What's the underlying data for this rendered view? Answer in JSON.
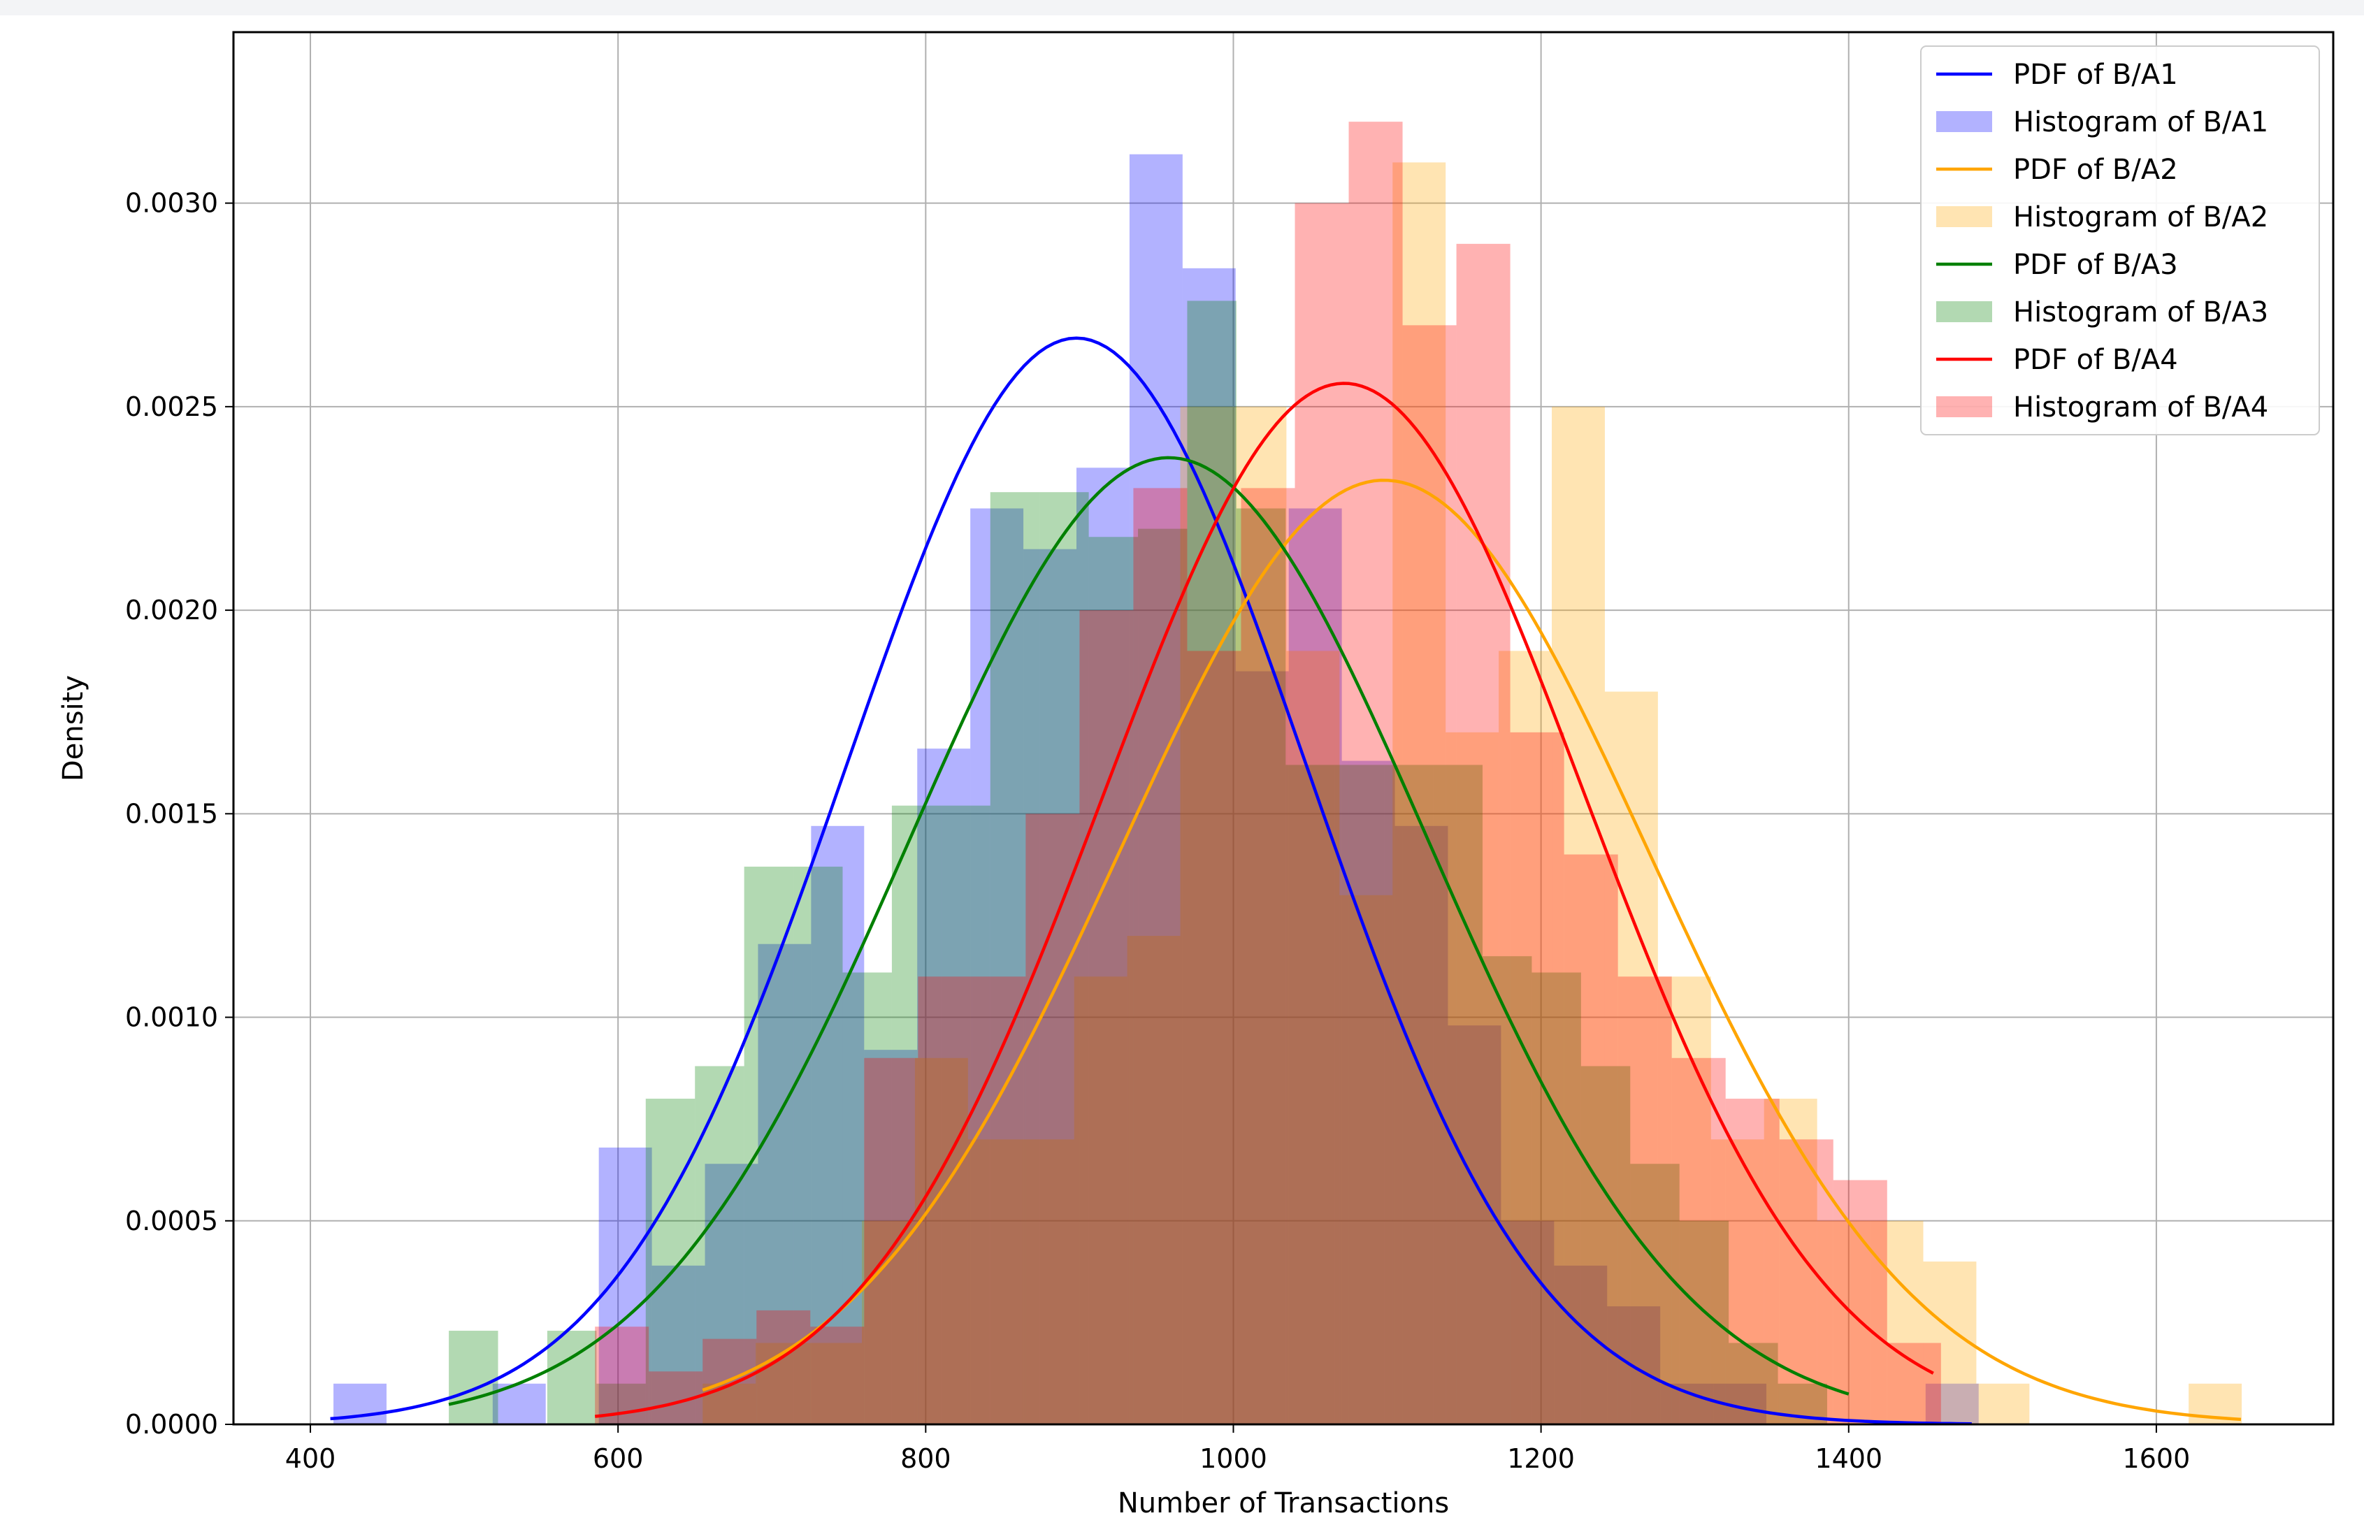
{
  "chart_data": {
    "type": "histogram",
    "title": "",
    "xlabel": "Number of Transactions",
    "ylabel": "Density",
    "xlim": [
      350,
      1715
    ],
    "ylim": [
      0,
      0.00342
    ],
    "xticks": [
      400,
      600,
      800,
      1000,
      1200,
      1400,
      1600
    ],
    "yticks": [
      0.0,
      0.0005,
      0.001,
      0.0015,
      0.002,
      0.0025,
      0.003
    ],
    "xtick_labels": [
      "400",
      "600",
      "800",
      "1000",
      "1200",
      "1400",
      "1600"
    ],
    "ytick_labels": [
      "0.0000",
      "0.0005",
      "0.0010",
      "0.0015",
      "0.0020",
      "0.0025",
      "0.0030"
    ],
    "grid": true,
    "legend_position": "top-right",
    "legend": [
      "PDF of B/A1",
      "Histogram of B/A1",
      "PDF of B/A2",
      "Histogram of B/A2",
      "PDF of B/A3",
      "Histogram of B/A3",
      "PDF of B/A4",
      "Histogram of B/A4"
    ],
    "series": [
      {
        "name": "B/A1",
        "pdf_label": "PDF of B/A1",
        "hist_label": "Histogram of B/A1",
        "color": "#0000ff",
        "mean": 898,
        "std": 149.5,
        "pdf_range": [
          413,
          1480
        ],
        "bins": [
          415,
          449.5,
          484,
          518.5,
          553,
          587.5,
          622,
          656.5,
          691,
          725.5,
          760,
          794.5,
          829,
          863.5,
          898,
          932.5,
          967,
          1001.5,
          1036,
          1070.5,
          1105,
          1139.5,
          1174,
          1208.5,
          1243,
          1277.5,
          1312,
          1346.5,
          1381,
          1415.5,
          1450,
          1484.5
        ],
        "density": [
          0.0001,
          0,
          0,
          0.0001,
          0,
          0.00068,
          0.00039,
          0.00064,
          0.00118,
          0.00147,
          0.00092,
          0.00166,
          0.00225,
          0.00215,
          0.00235,
          0.00312,
          0.00284,
          0.00185,
          0.00225,
          0.00163,
          0.00147,
          0.00098,
          0.0005,
          0.00039,
          0.00029,
          0.0001,
          0.0001,
          0,
          0,
          0,
          0.0001
        ]
      },
      {
        "name": "B/A2",
        "pdf_label": "PDF of B/A2",
        "hist_label": "Histogram of B/A2",
        "color": "#ffa500",
        "mean": 1098,
        "std": 172,
        "pdf_range": [
          655,
          1655
        ],
        "bins": [
          655,
          689.5,
          724,
          758.5,
          793,
          827.5,
          862,
          896.5,
          931,
          965.5,
          1000,
          1034.5,
          1069,
          1103.5,
          1138,
          1172.5,
          1207,
          1241.5,
          1276,
          1310.5,
          1345,
          1379.5,
          1414,
          1448.5,
          1483,
          1517.5,
          1552,
          1586.5,
          1621,
          1655.5
        ],
        "density": [
          0.0001,
          0.0002,
          0.0002,
          0.0005,
          0.0009,
          0.0007,
          0.0007,
          0.0011,
          0.0012,
          0.0025,
          0.0025,
          0.0019,
          0.0013,
          0.0031,
          0.0017,
          0.0019,
          0.0025,
          0.0018,
          0.0011,
          0.0007,
          0.0008,
          0.0005,
          0.0005,
          0.0004,
          0.0001,
          0,
          0,
          0,
          0.0001
        ]
      },
      {
        "name": "B/A3",
        "pdf_label": "PDF of B/A3",
        "hist_label": "Histogram of B/A3",
        "color": "#008000",
        "mean": 958,
        "std": 168,
        "pdf_range": [
          490,
          1400
        ],
        "bins": [
          490,
          522,
          554,
          586,
          618,
          650,
          682,
          714,
          746,
          778,
          810,
          842,
          874,
          906,
          938,
          970,
          1002,
          1034,
          1066,
          1098,
          1130,
          1162,
          1194,
          1226,
          1258,
          1290,
          1322,
          1354,
          1386
        ],
        "density": [
          0.00023,
          0,
          0.00023,
          0.0001,
          0.0008,
          0.00088,
          0.00137,
          0.00137,
          0.00111,
          0.00152,
          0.00152,
          0.00229,
          0.00229,
          0.00218,
          0.0022,
          0.00276,
          0.00225,
          0.00162,
          0.00162,
          0.00162,
          0.00162,
          0.00115,
          0.00111,
          0.00088,
          0.00064,
          0.0005,
          0.0002,
          0.0001
        ]
      },
      {
        "name": "B/A4",
        "pdf_label": "PDF of B/A4",
        "hist_label": "Histogram of B/A4",
        "color": "#ff0000",
        "mean": 1072,
        "std": 156,
        "pdf_range": [
          585,
          1455
        ],
        "bins": [
          585,
          620,
          655,
          690,
          725,
          760,
          795,
          830,
          865,
          900,
          935,
          970,
          1005,
          1040,
          1075,
          1110,
          1145,
          1180,
          1215,
          1250,
          1285,
          1320,
          1355,
          1390,
          1425,
          1460
        ],
        "density": [
          0.00024,
          0.00013,
          0.00021,
          0.00028,
          0.00024,
          0.0009,
          0.0011,
          0.0011,
          0.0015,
          0.002,
          0.0023,
          0.0019,
          0.0023,
          0.003,
          0.0032,
          0.0027,
          0.0029,
          0.0017,
          0.0014,
          0.0011,
          0.0009,
          0.0008,
          0.0007,
          0.0006,
          0.0002
        ]
      }
    ]
  }
}
